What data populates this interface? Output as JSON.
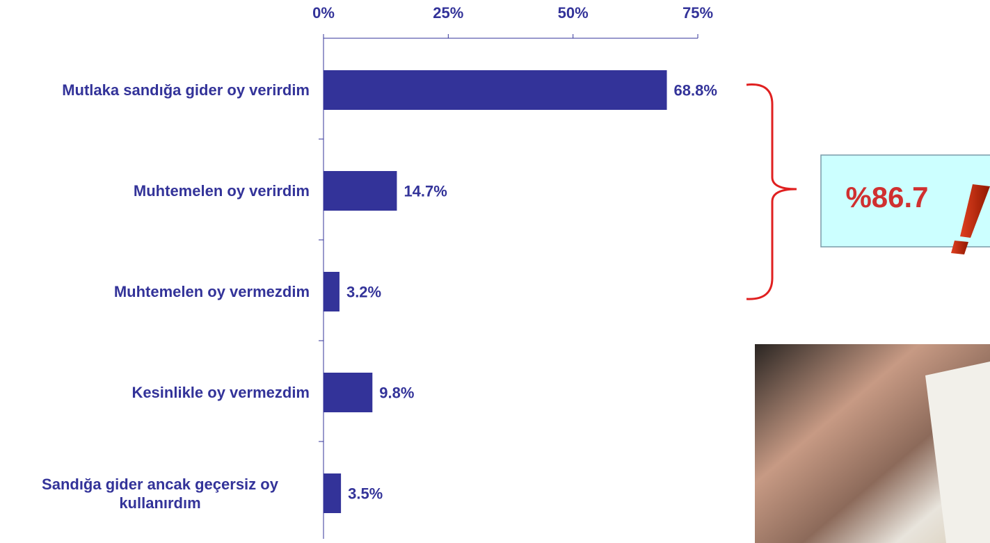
{
  "chart_data": {
    "type": "barh",
    "categories": [
      "Mutlaka sandığa gider oy verirdim",
      "Muhtemelen oy verirdim",
      "Muhtemelen oy vermezdim",
      "Kesinlikle oy vermezdim",
      "Sandığa gider ancak geçersiz oy kullanırdım"
    ],
    "values": [
      68.8,
      14.7,
      3.2,
      9.8,
      3.5
    ],
    "value_labels": [
      "68.8%",
      "14.7%",
      "3.2%",
      "9.8%",
      "3.5%"
    ],
    "color": "#333399",
    "xlim": [
      0,
      75
    ],
    "xticks": [
      {
        "value": 0,
        "label": "0%"
      },
      {
        "value": 25,
        "label": "25%"
      },
      {
        "value": 50,
        "label": "50%"
      },
      {
        "value": 75,
        "label": "75%"
      }
    ],
    "annotation": "%86.7"
  }
}
